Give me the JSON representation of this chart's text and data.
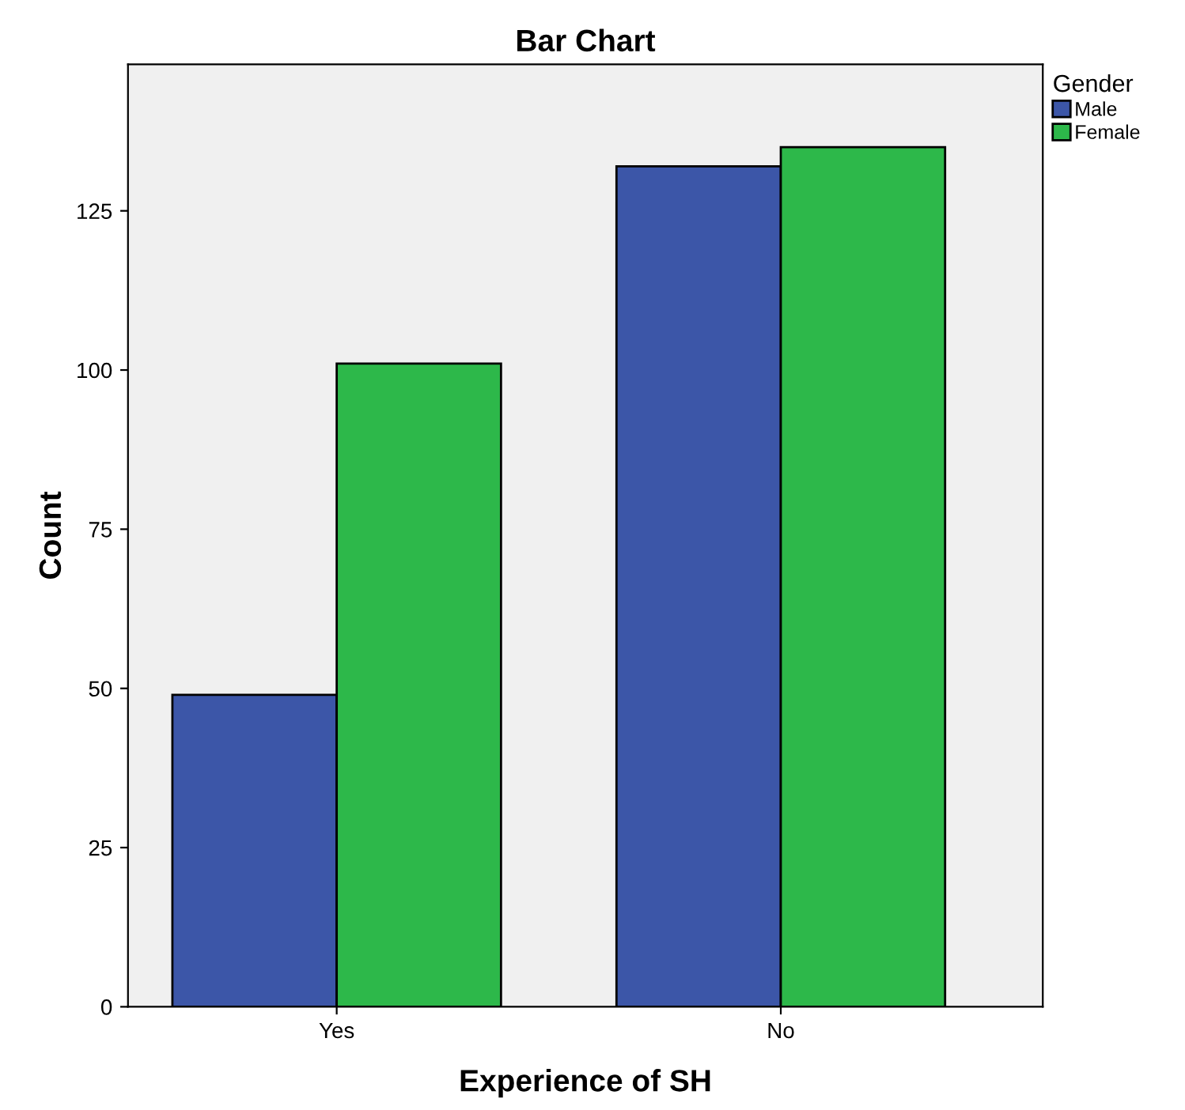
{
  "chart_data": {
    "type": "bar",
    "title": "Bar Chart",
    "xlabel": "Experience of SH",
    "ylabel": "Count",
    "legend_title": "Gender",
    "categories": [
      "Yes",
      "No"
    ],
    "series": [
      {
        "name": "Male",
        "color": "#3c56a8",
        "values": [
          49,
          132
        ]
      },
      {
        "name": "Female",
        "color": "#2db84a",
        "values": [
          101,
          135
        ]
      }
    ],
    "ylim": [
      0,
      148
    ],
    "yticks": [
      0,
      25,
      50,
      75,
      100,
      125
    ],
    "grid": false,
    "legend": "top right"
  }
}
